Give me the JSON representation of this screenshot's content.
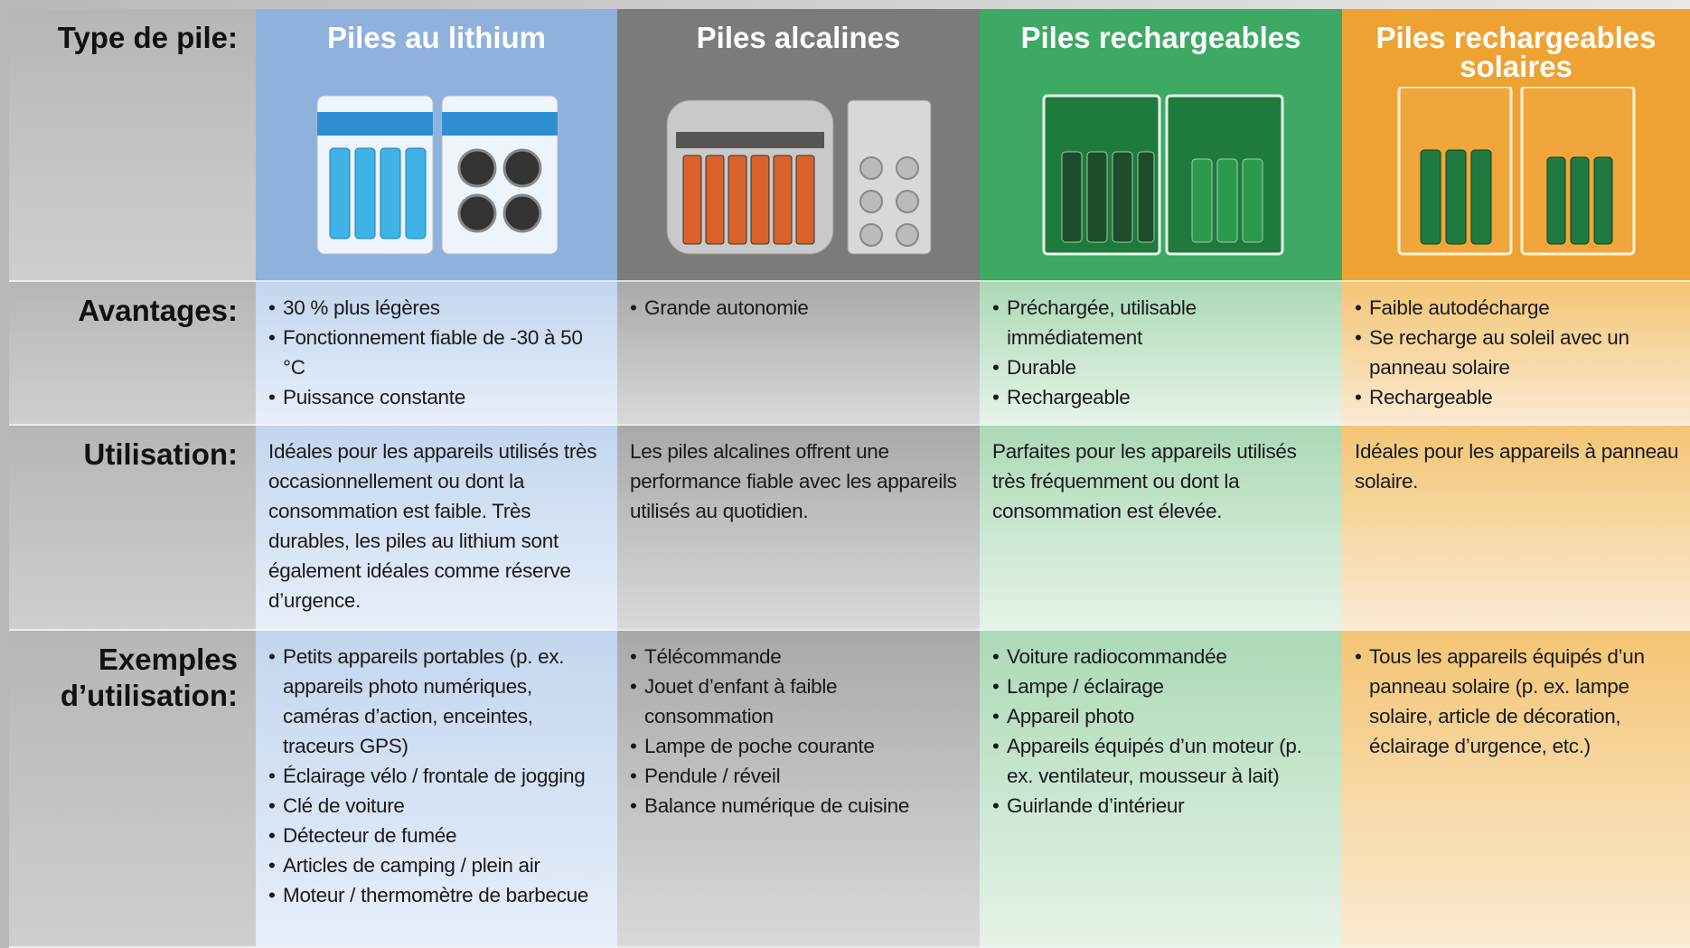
{
  "header": {
    "label": "Type de pile:",
    "columns": [
      "Piles au lithium",
      "Piles alcalines",
      "Piles rechargeables",
      "Piles rechargeables solaires"
    ]
  },
  "rows": [
    {
      "label": "Avantages:",
      "cells": [
        [
          "30 % plus légères",
          "Fonctionnement fiable de -30 à 50 °C",
          "Puissance constante"
        ],
        [
          "Grande autonomie"
        ],
        [
          "Préchargée, utilisable immédiatement",
          "Durable",
          "Rechargeable"
        ],
        [
          "Faible autodécharge",
          "Se recharge au soleil avec un panneau solaire",
          "Rechargeable"
        ]
      ]
    },
    {
      "label": "Utilisation:",
      "cells": [
        "Idéales pour les appareils utilisés très occasionnellement ou dont la consommation est faible. Très durables, les piles au lithium sont également idéales comme réserve d’urgence.",
        "Les piles alcalines offrent une performance fiable avec les appareils utilisés au quotidien.",
        "Parfaites pour les appareils utilisés très fréquemment ou dont la consommation est élevée.",
        "Idéales pour les appareils à panneau solaire."
      ]
    },
    {
      "label": "Exemples d’utilisation:",
      "cells": [
        [
          "Petits appareils portables (p. ex. appareils photo numériques, caméras d’action, enceintes, traceurs GPS)",
          "Éclairage vélo / frontale de jogging",
          "Clé de voiture",
          "Détecteur de fumée",
          "Articles de camping / plein air",
          "Moteur / thermomètre de barbecue"
        ],
        [
          "Télécommande",
          "Jouet d’enfant à faible consommation",
          "Lampe de poche courante",
          "Pendule / réveil",
          "Balance numérique de cuisine"
        ],
        [
          "Voiture radiocommandée",
          "Lampe / éclairage",
          "Appareil photo",
          "Appareils équipés d’un moteur (p. ex. ventilateur, mousseur à lait)",
          "Guirlande d’intérieur"
        ],
        [
          "Tous les appareils équipés d’un panneau solaire (p. ex. lampe solaire, article de décoration, éclairage d’urgence, etc.)"
        ]
      ]
    }
  ]
}
